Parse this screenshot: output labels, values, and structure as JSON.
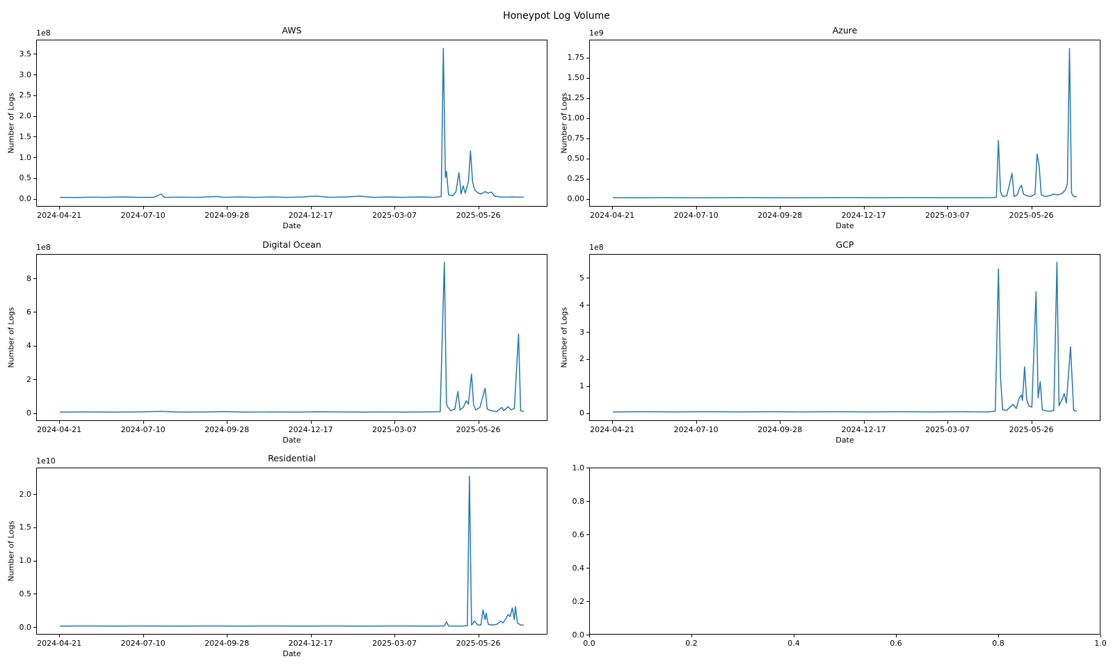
{
  "figure": {
    "suptitle": "Honeypot Log Volume",
    "line_color": "#1f77b4",
    "background_color": "#ffffff",
    "text_color": "#000000",
    "spine_color": "#000000",
    "layout": "3x2 grid of subplots, bottom-right axes empty"
  },
  "chart_data": [
    {
      "key": "aws",
      "type": "line",
      "title": "AWS",
      "grid_pos": {
        "row": 0,
        "col": 0
      },
      "axis": "date",
      "xlabel": "Date",
      "ylabel": "Number of Logs",
      "offset_label": "1e8",
      "unit_scale": 100000000.0,
      "xlim": [
        "2024-03-30",
        "2025-07-31"
      ],
      "ylim": [
        -0.19,
        3.84
      ],
      "x_ticks": {
        "values": [
          "2024-04-21",
          "2024-07-10",
          "2024-09-28",
          "2024-12-17",
          "2025-03-07",
          "2025-05-26"
        ],
        "labels": [
          "2024-04-21",
          "2024-07-10",
          "2024-09-28",
          "2024-12-17",
          "2025-03-07",
          "2025-05-26"
        ]
      },
      "y_ticks": {
        "values": [
          0,
          0.5,
          1,
          1.5,
          2,
          2.5,
          3,
          3.5
        ],
        "labels": [
          "0.0",
          "0.5",
          "1.0",
          "1.5",
          "2.0",
          "2.5",
          "3.0",
          "3.5"
        ]
      },
      "series": {
        "x": [
          "2024-04-21",
          "2024-05-05",
          "2024-05-20",
          "2024-06-05",
          "2024-06-20",
          "2024-07-05",
          "2024-07-20",
          "2024-07-27",
          "2024-07-30",
          "2024-08-15",
          "2024-09-01",
          "2024-09-18",
          "2024-09-25",
          "2024-10-10",
          "2024-10-25",
          "2024-11-10",
          "2024-11-25",
          "2024-12-10",
          "2024-12-22",
          "2025-01-05",
          "2025-01-20",
          "2025-02-02",
          "2025-02-15",
          "2025-03-01",
          "2025-03-15",
          "2025-04-01",
          "2025-04-15",
          "2025-04-21",
          "2025-04-23",
          "2025-04-25",
          "2025-04-26",
          "2025-04-28",
          "2025-05-02",
          "2025-05-05",
          "2025-05-08",
          "2025-05-10",
          "2025-05-12",
          "2025-05-14",
          "2025-05-17",
          "2025-05-19",
          "2025-05-21",
          "2025-05-23",
          "2025-05-26",
          "2025-05-29",
          "2025-06-02",
          "2025-06-05",
          "2025-06-08",
          "2025-06-11",
          "2025-06-16",
          "2025-06-22",
          "2025-06-28",
          "2025-07-03",
          "2025-07-09"
        ],
        "y": [
          0.02,
          0.015,
          0.025,
          0.02,
          0.03,
          0.02,
          0.02,
          0.1,
          0.02,
          0.025,
          0.02,
          0.04,
          0.02,
          0.03,
          0.02,
          0.03,
          0.02,
          0.03,
          0.05,
          0.02,
          0.03,
          0.05,
          0.02,
          0.03,
          0.02,
          0.03,
          0.02,
          0.04,
          3.65,
          0.5,
          0.65,
          0.08,
          0.06,
          0.15,
          0.62,
          0.1,
          0.3,
          0.12,
          0.4,
          1.15,
          0.4,
          0.2,
          0.13,
          0.1,
          0.16,
          0.12,
          0.15,
          0.05,
          0.03,
          0.025,
          0.03,
          0.025,
          0.025
        ]
      }
    },
    {
      "key": "azure",
      "type": "line",
      "title": "Azure",
      "grid_pos": {
        "row": 0,
        "col": 1
      },
      "axis": "date",
      "xlabel": "Date",
      "ylabel": "Number of Logs",
      "offset_label": "1e9",
      "unit_scale": 1000000000.0,
      "xlim": [
        "2024-03-30",
        "2025-07-31"
      ],
      "ylim": [
        -0.098,
        1.97
      ],
      "x_ticks": {
        "values": [
          "2024-04-21",
          "2024-07-10",
          "2024-09-28",
          "2024-12-17",
          "2025-03-07",
          "2025-05-26"
        ],
        "labels": [
          "2024-04-21",
          "2024-07-10",
          "2024-09-28",
          "2024-12-17",
          "2025-03-07",
          "2025-05-26"
        ]
      },
      "y_ticks": {
        "values": [
          0,
          0.25,
          0.5,
          0.75,
          1,
          1.25,
          1.5,
          1.75
        ],
        "labels": [
          "0.00",
          "0.25",
          "0.50",
          "0.75",
          "1.00",
          "1.25",
          "1.50",
          "1.75"
        ]
      },
      "series": {
        "x": [
          "2024-04-21",
          "2024-05-15",
          "2024-06-10",
          "2024-07-05",
          "2024-08-01",
          "2024-09-01",
          "2024-10-01",
          "2024-11-01",
          "2024-12-01",
          "2025-01-01",
          "2025-02-01",
          "2025-03-01",
          "2025-04-01",
          "2025-04-18",
          "2025-04-23",
          "2025-04-25",
          "2025-04-27",
          "2025-04-29",
          "2025-05-03",
          "2025-05-08",
          "2025-05-10",
          "2025-05-13",
          "2025-05-15",
          "2025-05-17",
          "2025-05-19",
          "2025-05-22",
          "2025-05-26",
          "2025-05-30",
          "2025-06-01",
          "2025-06-03",
          "2025-06-05",
          "2025-06-09",
          "2025-06-13",
          "2025-06-17",
          "2025-06-21",
          "2025-06-25",
          "2025-06-28",
          "2025-06-30",
          "2025-07-02",
          "2025-07-04",
          "2025-07-06",
          "2025-07-09"
        ],
        "y": [
          0.005,
          0.004,
          0.006,
          0.004,
          0.005,
          0.006,
          0.004,
          0.005,
          0.006,
          0.005,
          0.006,
          0.005,
          0.005,
          0.006,
          0.01,
          0.72,
          0.08,
          0.02,
          0.03,
          0.31,
          0.02,
          0.04,
          0.12,
          0.16,
          0.05,
          0.03,
          0.02,
          0.05,
          0.55,
          0.4,
          0.04,
          0.02,
          0.03,
          0.05,
          0.04,
          0.06,
          0.1,
          0.18,
          1.87,
          0.06,
          0.02,
          0.015
        ]
      }
    },
    {
      "key": "digital-ocean",
      "type": "line",
      "title": "Digital Ocean",
      "grid_pos": {
        "row": 1,
        "col": 0
      },
      "axis": "date",
      "xlabel": "Date",
      "ylabel": "Number of Logs",
      "offset_label": "1e8",
      "unit_scale": 100000000.0,
      "xlim": [
        "2024-03-30",
        "2025-07-31"
      ],
      "ylim": [
        -0.47,
        9.45
      ],
      "x_ticks": {
        "values": [
          "2024-04-21",
          "2024-07-10",
          "2024-09-28",
          "2024-12-17",
          "2025-03-07",
          "2025-05-26"
        ],
        "labels": [
          "2024-04-21",
          "2024-07-10",
          "2024-09-28",
          "2024-12-17",
          "2025-03-07",
          "2025-05-26"
        ]
      },
      "y_ticks": {
        "values": [
          0,
          2,
          4,
          6,
          8
        ],
        "labels": [
          "0",
          "2",
          "4",
          "6",
          "8"
        ]
      },
      "series": {
        "x": [
          "2024-04-21",
          "2024-05-15",
          "2024-06-10",
          "2024-07-05",
          "2024-07-27",
          "2024-08-15",
          "2024-09-10",
          "2024-09-25",
          "2024-10-15",
          "2024-11-10",
          "2024-12-05",
          "2024-12-22",
          "2025-01-15",
          "2025-02-05",
          "2025-02-25",
          "2025-03-15",
          "2025-04-05",
          "2025-04-20",
          "2025-04-24",
          "2025-04-26",
          "2025-04-27",
          "2025-04-30",
          "2025-05-04",
          "2025-05-07",
          "2025-05-09",
          "2025-05-12",
          "2025-05-15",
          "2025-05-17",
          "2025-05-20",
          "2025-05-22",
          "2025-05-24",
          "2025-05-28",
          "2025-06-02",
          "2025-06-04",
          "2025-06-08",
          "2025-06-13",
          "2025-06-18",
          "2025-06-20",
          "2025-06-24",
          "2025-06-27",
          "2025-06-30",
          "2025-07-04",
          "2025-07-06",
          "2025-07-09"
        ],
        "y": [
          0.02,
          0.03,
          0.02,
          0.03,
          0.06,
          0.02,
          0.03,
          0.05,
          0.02,
          0.03,
          0.02,
          0.04,
          0.03,
          0.02,
          0.03,
          0.02,
          0.03,
          0.04,
          9.0,
          0.55,
          0.35,
          0.1,
          0.2,
          1.25,
          0.15,
          0.3,
          0.7,
          0.5,
          2.3,
          0.45,
          0.15,
          0.3,
          1.45,
          0.2,
          0.1,
          0.05,
          0.3,
          0.1,
          0.35,
          0.15,
          0.25,
          4.7,
          0.1,
          0.05
        ]
      }
    },
    {
      "key": "gcp",
      "type": "line",
      "title": "GCP",
      "grid_pos": {
        "row": 1,
        "col": 1
      },
      "axis": "date",
      "xlabel": "Date",
      "ylabel": "Number of Logs",
      "offset_label": "1e8",
      "unit_scale": 100000000.0,
      "xlim": [
        "2024-03-30",
        "2025-07-31"
      ],
      "ylim": [
        -0.29,
        5.88
      ],
      "x_ticks": {
        "values": [
          "2024-04-21",
          "2024-07-10",
          "2024-09-28",
          "2024-12-17",
          "2025-03-07",
          "2025-05-26"
        ],
        "labels": [
          "2024-04-21",
          "2024-07-10",
          "2024-09-28",
          "2024-12-17",
          "2025-03-07",
          "2025-05-26"
        ]
      },
      "y_ticks": {
        "values": [
          0,
          1,
          2,
          3,
          4,
          5
        ],
        "labels": [
          "0",
          "1",
          "2",
          "3",
          "4",
          "5"
        ]
      },
      "series": {
        "x": [
          "2024-04-21",
          "2024-05-20",
          "2024-06-20",
          "2024-07-20",
          "2024-08-20",
          "2024-09-20",
          "2024-10-20",
          "2024-11-20",
          "2024-12-20",
          "2025-01-20",
          "2025-02-20",
          "2025-03-20",
          "2025-04-15",
          "2025-04-22",
          "2025-04-25",
          "2025-04-27",
          "2025-04-29",
          "2025-05-03",
          "2025-05-06",
          "2025-05-09",
          "2025-05-12",
          "2025-05-15",
          "2025-05-17",
          "2025-05-18",
          "2025-05-20",
          "2025-05-22",
          "2025-05-24",
          "2025-05-27",
          "2025-05-31",
          "2025-06-02",
          "2025-06-04",
          "2025-06-06",
          "2025-06-10",
          "2025-06-14",
          "2025-06-17",
          "2025-06-20",
          "2025-06-22",
          "2025-06-25",
          "2025-06-27",
          "2025-06-29",
          "2025-07-03",
          "2025-07-06",
          "2025-07-09"
        ],
        "y": [
          0.02,
          0.03,
          0.02,
          0.03,
          0.02,
          0.03,
          0.02,
          0.03,
          0.02,
          0.03,
          0.02,
          0.03,
          0.02,
          0.05,
          5.35,
          1.3,
          0.1,
          0.08,
          0.2,
          0.3,
          0.15,
          0.55,
          0.65,
          0.45,
          1.7,
          0.5,
          0.25,
          0.2,
          4.5,
          0.55,
          1.15,
          0.1,
          0.06,
          0.05,
          0.08,
          5.6,
          0.25,
          0.5,
          0.7,
          0.35,
          2.45,
          0.08,
          0.05
        ]
      }
    },
    {
      "key": "residential",
      "type": "line",
      "title": "Residential",
      "grid_pos": {
        "row": 2,
        "col": 0
      },
      "axis": "date",
      "xlabel": "Date",
      "ylabel": "Number of Logs",
      "offset_label": "1e10",
      "unit_scale": 10000000000.0,
      "xlim": [
        "2024-03-30",
        "2025-07-31"
      ],
      "ylim": [
        -0.115,
        2.4
      ],
      "x_ticks": {
        "values": [
          "2024-04-21",
          "2024-07-10",
          "2024-09-28",
          "2024-12-17",
          "2025-03-07",
          "2025-05-26"
        ],
        "labels": [
          "2024-04-21",
          "2024-07-10",
          "2024-09-28",
          "2024-12-17",
          "2025-03-07",
          "2025-05-26"
        ]
      },
      "y_ticks": {
        "values": [
          0,
          0.5,
          1,
          1.5,
          2
        ],
        "labels": [
          "0.0",
          "0.5",
          "1.0",
          "1.5",
          "2.0"
        ]
      },
      "series": {
        "x": [
          "2024-04-21",
          "2024-05-15",
          "2024-06-10",
          "2024-07-10",
          "2024-08-10",
          "2024-09-10",
          "2024-10-10",
          "2024-11-10",
          "2024-12-10",
          "2025-01-10",
          "2025-02-10",
          "2025-03-10",
          "2025-04-10",
          "2025-04-24",
          "2025-04-26",
          "2025-04-28",
          "2025-05-05",
          "2025-05-12",
          "2025-05-16",
          "2025-05-18",
          "2025-05-20",
          "2025-05-23",
          "2025-05-26",
          "2025-05-29",
          "2025-05-31",
          "2025-06-02",
          "2025-06-03",
          "2025-06-05",
          "2025-06-09",
          "2025-06-13",
          "2025-06-17",
          "2025-06-19",
          "2025-06-22",
          "2025-06-24",
          "2025-06-26",
          "2025-06-28",
          "2025-06-30",
          "2025-07-01",
          "2025-07-03",
          "2025-07-06",
          "2025-07-09"
        ],
        "y": [
          0.004,
          0.005,
          0.004,
          0.005,
          0.004,
          0.005,
          0.004,
          0.005,
          0.004,
          0.005,
          0.004,
          0.005,
          0.004,
          0.005,
          0.07,
          0.005,
          0.004,
          0.005,
          0.01,
          2.28,
          0.02,
          0.08,
          0.02,
          0.02,
          0.25,
          0.1,
          0.2,
          0.03,
          0.02,
          0.03,
          0.08,
          0.05,
          0.12,
          0.18,
          0.15,
          0.28,
          0.1,
          0.3,
          0.05,
          0.02,
          0.02
        ]
      }
    },
    {
      "key": "empty",
      "type": "line",
      "title": "",
      "grid_pos": {
        "row": 2,
        "col": 1
      },
      "axis": "linear",
      "xlabel": null,
      "ylabel": null,
      "offset_label": null,
      "unit_scale": 1,
      "xlim": [
        0,
        1
      ],
      "ylim": [
        0,
        1
      ],
      "x_ticks": {
        "values": [
          0,
          0.2,
          0.4,
          0.6,
          0.8,
          1
        ],
        "labels": [
          "0.0",
          "0.2",
          "0.4",
          "0.6",
          "0.8",
          "1.0"
        ]
      },
      "y_ticks": {
        "values": [
          0,
          0.2,
          0.4,
          0.6,
          0.8,
          1
        ],
        "labels": [
          "0.0",
          "0.2",
          "0.4",
          "0.6",
          "0.8",
          "1.0"
        ]
      },
      "series": {
        "x": [],
        "y": []
      }
    }
  ]
}
